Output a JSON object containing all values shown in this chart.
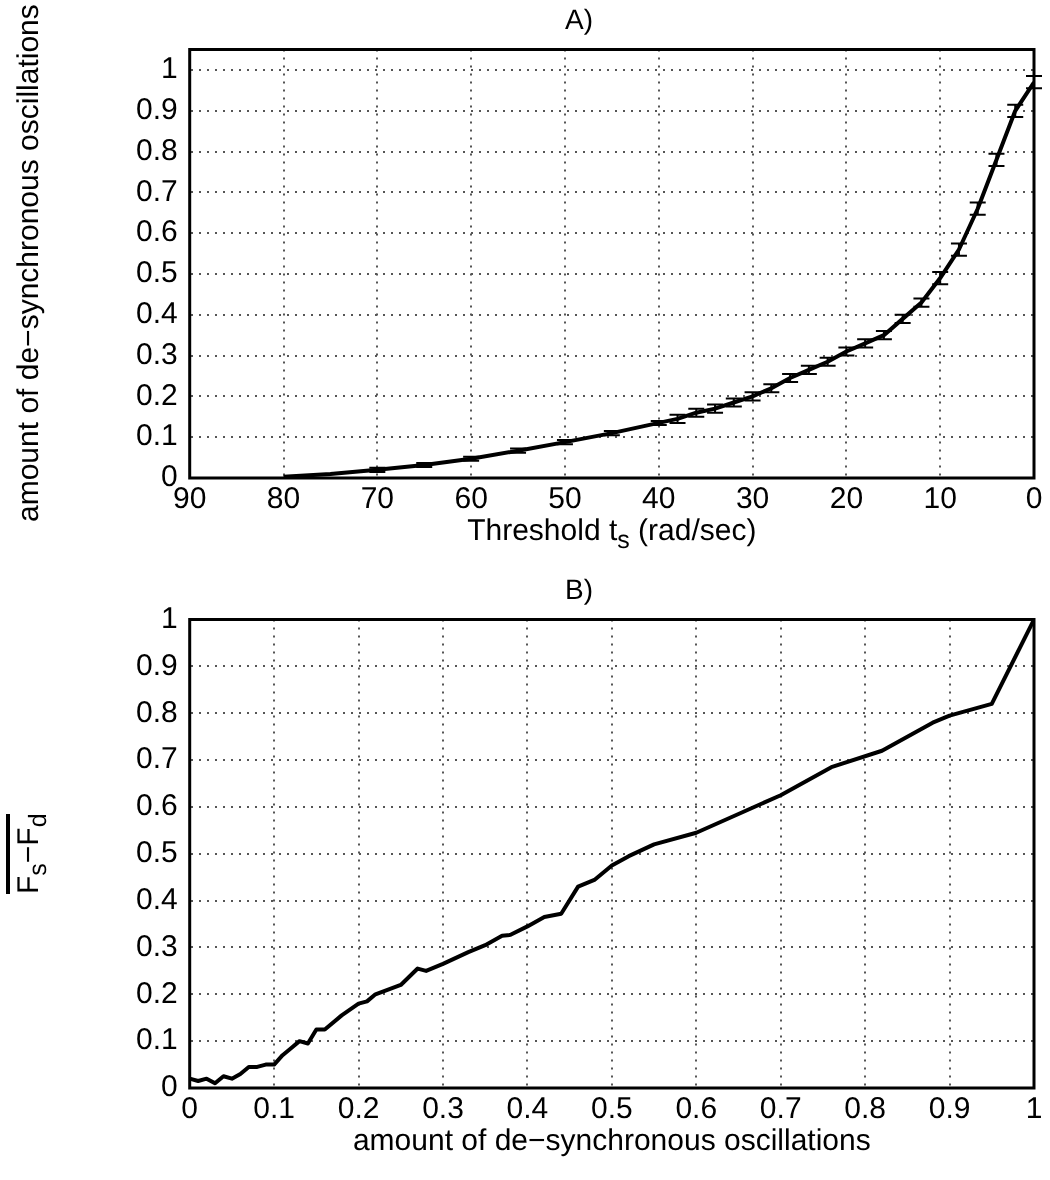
{
  "chart_data": [
    {
      "type": "line",
      "title": "A)",
      "xlabel": "Threshold t$_{s}$ (rad/sec)",
      "ylabel": "amount of de−synchronous oscillations",
      "color": "#000000",
      "x": [
        0,
        2,
        4,
        6,
        8,
        10,
        12,
        14,
        16,
        18,
        20,
        22,
        24,
        26,
        28,
        30,
        32,
        34,
        36,
        38,
        40,
        45,
        50,
        55,
        60,
        65,
        70,
        75,
        80
      ],
      "values": [
        0.97,
        0.9,
        0.78,
        0.66,
        0.56,
        0.49,
        0.43,
        0.39,
        0.35,
        0.33,
        0.31,
        0.285,
        0.265,
        0.245,
        0.22,
        0.2,
        0.185,
        0.17,
        0.16,
        0.145,
        0.135,
        0.11,
        0.088,
        0.067,
        0.047,
        0.032,
        0.02,
        0.01,
        0.003
      ],
      "errors": [
        0.015,
        0.015,
        0.015,
        0.015,
        0.015,
        0.015,
        0.01,
        0.01,
        0.01,
        0.01,
        0.01,
        0.01,
        0.01,
        0.01,
        0.01,
        0.01,
        0.01,
        0.01,
        0.01,
        0.01,
        0.005,
        0.005,
        0.005,
        0.005,
        0.005,
        0.005,
        0.005,
        null,
        null
      ],
      "xlim": [
        90,
        0
      ],
      "xticks": [
        90,
        80,
        70,
        60,
        50,
        40,
        30,
        20,
        10,
        0
      ],
      "ylim": [
        0,
        1.05
      ],
      "yticks": [
        0,
        0.1,
        0.2,
        0.3,
        0.4,
        0.5,
        0.6,
        0.7,
        0.8,
        0.9,
        1
      ],
      "grid": true
    },
    {
      "type": "line",
      "title": "B)",
      "xlabel": "amount of de−synchronous oscillations",
      "ylabel": "F$_{s}$−F$_{d}$",
      "color": "#000000",
      "x": [
        0,
        0.01,
        0.02,
        0.03,
        0.04,
        0.05,
        0.06,
        0.07,
        0.08,
        0.09,
        0.1,
        0.11,
        0.12,
        0.13,
        0.14,
        0.15,
        0.16,
        0.18,
        0.2,
        0.21,
        0.22,
        0.25,
        0.27,
        0.28,
        0.3,
        0.33,
        0.35,
        0.37,
        0.38,
        0.4,
        0.42,
        0.44,
        0.46,
        0.48,
        0.5,
        0.52,
        0.55,
        0.6,
        0.65,
        0.7,
        0.76,
        0.82,
        0.88,
        0.9,
        0.95,
        1
      ],
      "values": [
        0.02,
        0.015,
        0.02,
        0.01,
        0.025,
        0.02,
        0.03,
        0.045,
        0.045,
        0.05,
        0.05,
        0.07,
        0.085,
        0.1,
        0.095,
        0.125,
        0.125,
        0.155,
        0.18,
        0.185,
        0.2,
        0.22,
        0.255,
        0.25,
        0.265,
        0.29,
        0.305,
        0.325,
        0.327,
        0.345,
        0.365,
        0.372,
        0.43,
        0.445,
        0.475,
        0.495,
        0.52,
        0.545,
        0.585,
        0.625,
        0.685,
        0.72,
        0.78,
        0.795,
        0.82,
        1
      ],
      "xlim": [
        0,
        1
      ],
      "xticks": [
        0,
        0.1,
        0.2,
        0.3,
        0.4,
        0.5,
        0.6,
        0.7,
        0.8,
        0.9,
        1
      ],
      "ylim": [
        0,
        1
      ],
      "yticks": [
        0,
        0.1,
        0.2,
        0.3,
        0.4,
        0.5,
        0.6,
        0.7,
        0.8,
        0.9,
        1
      ],
      "grid": true
    }
  ]
}
